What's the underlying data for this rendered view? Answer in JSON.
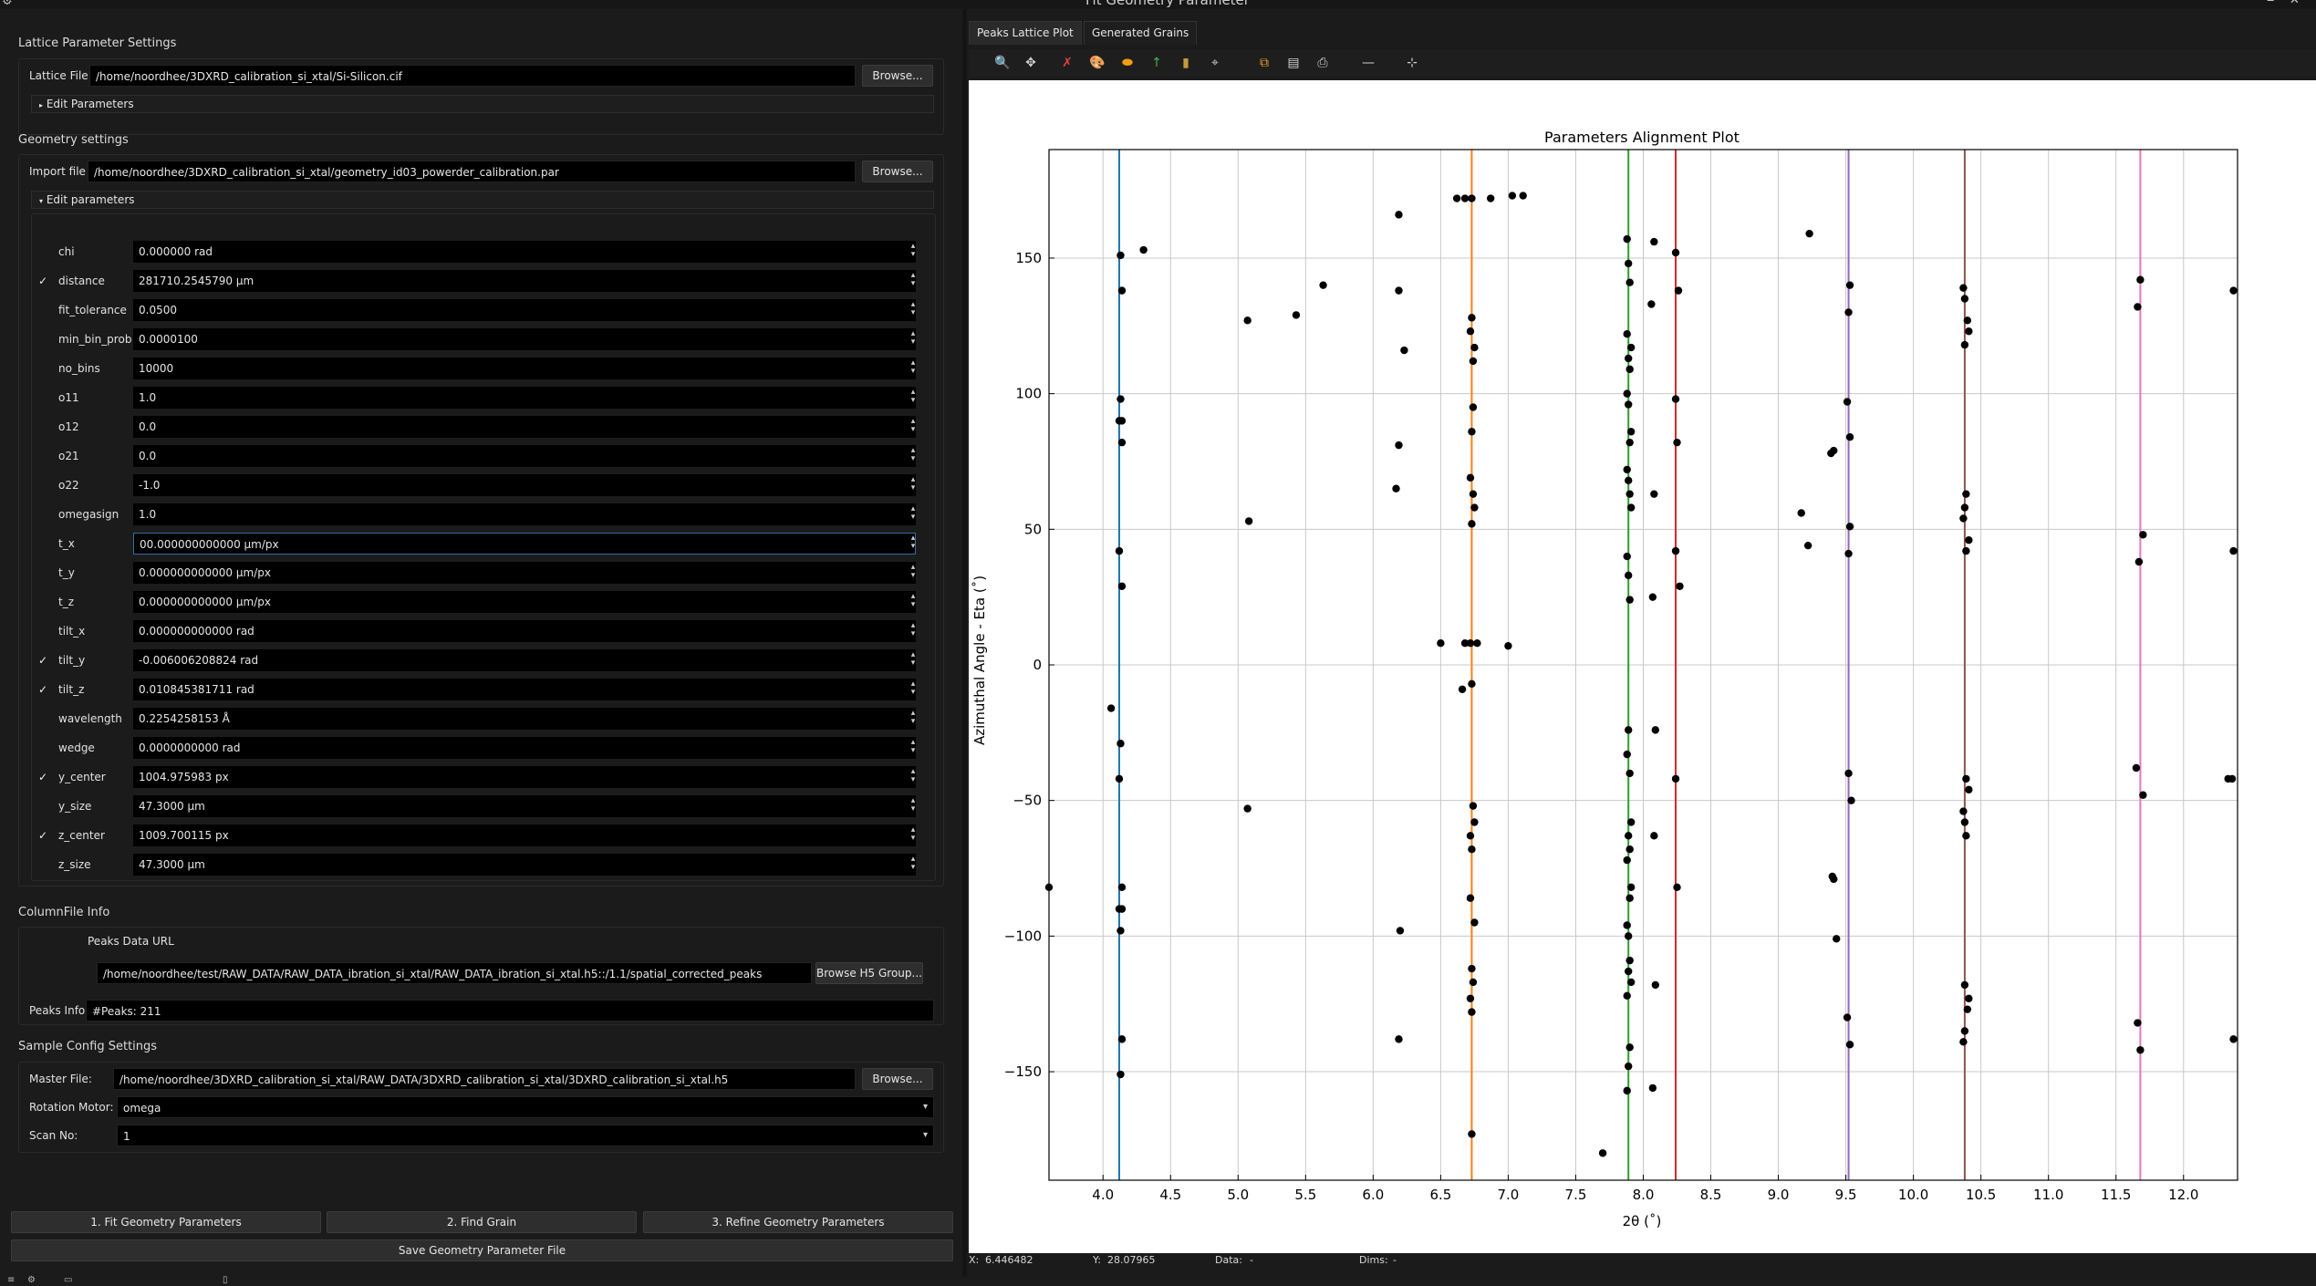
{
  "window": {
    "title": "Fit Geometry Parameter"
  },
  "lattice": {
    "section_title": "Lattice Parameter Settings",
    "file_label": "Lattice File:",
    "file_value": "/home/noordhee/3DXRD_calibration_si_xtal/Si-Silicon.cif",
    "browse_label": "Browse...",
    "edit_params_label": "Edit Parameters"
  },
  "geometry": {
    "section_title": "Geometry settings",
    "import_label": "Import file",
    "import_value": "/home/noordhee/3DXRD_calibration_si_xtal/geometry_id03_powerder_calibration.par",
    "browse_label": "Browse...",
    "edit_params_label": "Edit parameters",
    "params": [
      {
        "name": "chi",
        "value": "0.000000 rad",
        "checked": false
      },
      {
        "name": "distance",
        "value": "281710.2545790 µm",
        "checked": true
      },
      {
        "name": "fit_tolerance",
        "value": "0.0500",
        "checked": false
      },
      {
        "name": "min_bin_prob",
        "value": "0.0000100",
        "checked": false
      },
      {
        "name": "no_bins",
        "value": "10000",
        "checked": false
      },
      {
        "name": "o11",
        "value": "1.0",
        "checked": false
      },
      {
        "name": "o12",
        "value": "0.0",
        "checked": false
      },
      {
        "name": "o21",
        "value": "0.0",
        "checked": false
      },
      {
        "name": "o22",
        "value": "-1.0",
        "checked": false
      },
      {
        "name": "omegasign",
        "value": "1.0",
        "checked": false
      },
      {
        "name": "t_x",
        "value": "00.000000000000 µm/px",
        "checked": false
      },
      {
        "name": "t_y",
        "value": "0.000000000000 µm/px",
        "checked": false
      },
      {
        "name": "t_z",
        "value": "0.000000000000 µm/px",
        "checked": false
      },
      {
        "name": "tilt_x",
        "value": "0.000000000000 rad",
        "checked": false
      },
      {
        "name": "tilt_y",
        "value": "-0.006006208824 rad",
        "checked": true
      },
      {
        "name": "tilt_z",
        "value": "0.010845381711 rad",
        "checked": true
      },
      {
        "name": "wavelength",
        "value": "0.2254258153 Å",
        "checked": false
      },
      {
        "name": "wedge",
        "value": "0.0000000000 rad",
        "checked": false
      },
      {
        "name": "y_center",
        "value": "1004.975983 px",
        "checked": true
      },
      {
        "name": "y_size",
        "value": "47.3000 µm",
        "checked": false
      },
      {
        "name": "z_center",
        "value": "1009.700115 px",
        "checked": true
      },
      {
        "name": "z_size",
        "value": "47.3000 µm",
        "checked": false
      }
    ]
  },
  "columnfile": {
    "section_title": "ColumnFile Info",
    "peaks_url_label": "Peaks Data URL",
    "peaks_url_value": "/home/noordhee/test/RAW_DATA/RAW_DATA_ibration_si_xtal/RAW_DATA_ibration_si_xtal.h5::/1.1/spatial_corrected_peaks",
    "browse_h5_label": "Browse H5 Group...",
    "peaks_info_label": "Peaks Info",
    "peaks_info_value": "#Peaks: 211"
  },
  "sample": {
    "section_title": "Sample Config Settings",
    "master_label": "Master File:",
    "master_value": "/home/noordhee/3DXRD_calibration_si_xtal/RAW_DATA/3DXRD_calibration_si_xtal/3DXRD_calibration_si_xtal.h5",
    "browse_label": "Browse...",
    "rotation_label": "Rotation Motor:",
    "rotation_value": "omega",
    "scan_label": "Scan No:",
    "scan_value": "1"
  },
  "actions": {
    "fit": "1. Fit Geometry Parameters",
    "find": "2. Find Grain",
    "refine": "3. Refine Geometry Parameters",
    "save": "Save Geometry Parameter File"
  },
  "tabs": [
    "Peaks Lattice Plot",
    "Generated Grains"
  ],
  "toolbar_icons": [
    "zoom-icon",
    "pan-icon",
    "clear-mask-icon",
    "palette-icon",
    "shape-icon",
    "axis-icon",
    "colorbar-icon",
    "roi-icon",
    "copy-icon",
    "save-icon",
    "print-icon",
    "line-style-icon",
    "crosshair-icon"
  ],
  "statusbar": {
    "x_label": "X:",
    "x_value": "6.446482",
    "y_label": "Y:",
    "y_value": "28.07965",
    "data_label": "Data:",
    "data_value": "-",
    "dims_label": "Dims:",
    "dims_value": "-"
  },
  "chart_data": {
    "type": "scatter",
    "title": "Parameters Alignment Plot",
    "xlabel": "2θ (˚)",
    "ylabel": "Azimuthal Angle - Eta (˚)",
    "xlim": [
      3.6,
      12.4
    ],
    "ylim": [
      -190,
      190
    ],
    "xticks": [
      4.0,
      4.5,
      5.0,
      5.5,
      6.0,
      6.5,
      7.0,
      7.5,
      8.0,
      8.5,
      9.0,
      9.5,
      10.0,
      10.5,
      11.0,
      11.5,
      12.0
    ],
    "xtick_labels": [
      "4.0",
      "4.5",
      "5.0",
      "5.5",
      "6.0",
      "6.5",
      "7.0",
      "7.5",
      "8.0",
      "8.5",
      "9.0",
      "9.5",
      "10.0",
      "10.5",
      "11.0",
      "11.5",
      "12.0"
    ],
    "yticks": [
      -150,
      -100,
      -50,
      0,
      50,
      100,
      150
    ],
    "ytick_labels": [
      "−150",
      "−100",
      "−50",
      "0",
      "50",
      "100",
      "150"
    ],
    "grid": true,
    "ring_lines": [
      {
        "x": 4.12,
        "color": "#1f77b4"
      },
      {
        "x": 6.73,
        "color": "#ff7f0e"
      },
      {
        "x": 7.89,
        "color": "#2ca02c"
      },
      {
        "x": 8.24,
        "color": "#d62728"
      },
      {
        "x": 9.52,
        "color": "#9467bd"
      },
      {
        "x": 10.38,
        "color": "#8c564b"
      },
      {
        "x": 11.68,
        "color": "#e377c2"
      }
    ],
    "points": [
      [
        4.13,
        151
      ],
      [
        4.14,
        138
      ],
      [
        4.13,
        98
      ],
      [
        4.12,
        90
      ],
      [
        4.14,
        90
      ],
      [
        4.14,
        82
      ],
      [
        4.12,
        42
      ],
      [
        4.14,
        29
      ],
      [
        4.06,
        -16
      ],
      [
        4.13,
        -29
      ],
      [
        4.12,
        -42
      ],
      [
        4.14,
        -82
      ],
      [
        4.12,
        -90
      ],
      [
        4.14,
        -90
      ],
      [
        4.13,
        -98
      ],
      [
        4.14,
        -138
      ],
      [
        4.13,
        -151
      ],
      [
        4.3,
        153
      ],
      [
        5.07,
        127
      ],
      [
        5.08,
        53
      ],
      [
        5.07,
        -53
      ],
      [
        5.43,
        129
      ],
      [
        5.63,
        140
      ],
      [
        3.6,
        -82
      ],
      [
        6.19,
        166
      ],
      [
        6.19,
        138
      ],
      [
        6.23,
        116
      ],
      [
        6.19,
        81
      ],
      [
        6.17,
        65
      ],
      [
        6.5,
        8
      ],
      [
        6.2,
        -98
      ],
      [
        6.19,
        -138
      ],
      [
        6.62,
        172
      ],
      [
        6.68,
        172
      ],
      [
        6.73,
        172
      ],
      [
        6.87,
        172
      ],
      [
        7.03,
        173
      ],
      [
        7.11,
        173
      ],
      [
        6.73,
        128
      ],
      [
        6.72,
        123
      ],
      [
        6.75,
        117
      ],
      [
        6.74,
        112
      ],
      [
        6.74,
        95
      ],
      [
        6.73,
        86
      ],
      [
        6.72,
        69
      ],
      [
        6.74,
        63
      ],
      [
        6.75,
        58
      ],
      [
        6.73,
        52
      ],
      [
        6.68,
        8
      ],
      [
        6.72,
        8
      ],
      [
        6.77,
        8
      ],
      [
        7.0,
        7
      ],
      [
        6.66,
        -9
      ],
      [
        6.73,
        -7
      ],
      [
        6.74,
        -52
      ],
      [
        6.75,
        -58
      ],
      [
        6.72,
        -63
      ],
      [
        6.73,
        -68
      ],
      [
        6.72,
        -86
      ],
      [
        6.75,
        -95
      ],
      [
        6.73,
        -112
      ],
      [
        6.74,
        -117
      ],
      [
        6.72,
        -123
      ],
      [
        6.73,
        -128
      ],
      [
        6.73,
        -173
      ],
      [
        7.7,
        -180
      ],
      [
        7.88,
        157
      ],
      [
        7.89,
        148
      ],
      [
        7.9,
        141
      ],
      [
        7.88,
        122
      ],
      [
        7.91,
        117
      ],
      [
        7.89,
        113
      ],
      [
        7.9,
        109
      ],
      [
        7.88,
        100
      ],
      [
        7.89,
        96
      ],
      [
        7.91,
        86
      ],
      [
        7.9,
        82
      ],
      [
        7.88,
        72
      ],
      [
        7.89,
        68
      ],
      [
        7.9,
        63
      ],
      [
        7.91,
        58
      ],
      [
        7.88,
        40
      ],
      [
        7.89,
        33
      ],
      [
        7.9,
        24
      ],
      [
        7.89,
        -24
      ],
      [
        7.88,
        -33
      ],
      [
        7.9,
        -40
      ],
      [
        7.91,
        -58
      ],
      [
        7.89,
        -63
      ],
      [
        7.9,
        -68
      ],
      [
        7.88,
        -72
      ],
      [
        7.91,
        -82
      ],
      [
        7.9,
        -86
      ],
      [
        7.88,
        -96
      ],
      [
        7.89,
        -100
      ],
      [
        7.9,
        -109
      ],
      [
        7.89,
        -113
      ],
      [
        7.91,
        -117
      ],
      [
        7.88,
        -122
      ],
      [
        7.9,
        -141
      ],
      [
        7.89,
        -148
      ],
      [
        7.88,
        -157
      ],
      [
        8.08,
        156
      ],
      [
        8.06,
        133
      ],
      [
        8.08,
        63
      ],
      [
        8.07,
        25
      ],
      [
        8.09,
        -24
      ],
      [
        8.08,
        -63
      ],
      [
        8.09,
        -118
      ],
      [
        8.07,
        -156
      ],
      [
        8.24,
        152
      ],
      [
        8.26,
        138
      ],
      [
        8.24,
        98
      ],
      [
        8.25,
        82
      ],
      [
        8.24,
        42
      ],
      [
        8.27,
        29
      ],
      [
        8.24,
        -42
      ],
      [
        8.25,
        -82
      ],
      [
        9.23,
        159
      ],
      [
        9.17,
        56
      ],
      [
        9.22,
        44
      ],
      [
        9.39,
        78
      ],
      [
        9.41,
        79
      ],
      [
        9.4,
        -78
      ],
      [
        9.41,
        -79
      ],
      [
        9.43,
        -101
      ],
      [
        9.53,
        140
      ],
      [
        9.52,
        130
      ],
      [
        9.51,
        97
      ],
      [
        9.53,
        84
      ],
      [
        9.53,
        51
      ],
      [
        9.52,
        41
      ],
      [
        9.52,
        -40
      ],
      [
        9.54,
        -50
      ],
      [
        9.51,
        -130
      ],
      [
        9.53,
        -140
      ],
      [
        10.37,
        139
      ],
      [
        10.38,
        135
      ],
      [
        10.4,
        127
      ],
      [
        10.41,
        123
      ],
      [
        10.38,
        118
      ],
      [
        10.39,
        63
      ],
      [
        10.38,
        58
      ],
      [
        10.37,
        54
      ],
      [
        10.41,
        46
      ],
      [
        10.39,
        42
      ],
      [
        10.39,
        -42
      ],
      [
        10.41,
        -46
      ],
      [
        10.37,
        -54
      ],
      [
        10.38,
        -58
      ],
      [
        10.39,
        -63
      ],
      [
        10.38,
        -118
      ],
      [
        10.41,
        -123
      ],
      [
        10.4,
        -127
      ],
      [
        10.38,
        -135
      ],
      [
        10.37,
        -139
      ],
      [
        11.68,
        142
      ],
      [
        11.66,
        132
      ],
      [
        11.7,
        48
      ],
      [
        11.67,
        38
      ],
      [
        11.65,
        -38
      ],
      [
        11.7,
        -48
      ],
      [
        11.66,
        -132
      ],
      [
        11.68,
        -142
      ],
      [
        12.37,
        138
      ],
      [
        12.37,
        42
      ],
      [
        12.33,
        -42
      ],
      [
        12.36,
        -42
      ],
      [
        12.37,
        -138
      ]
    ]
  }
}
